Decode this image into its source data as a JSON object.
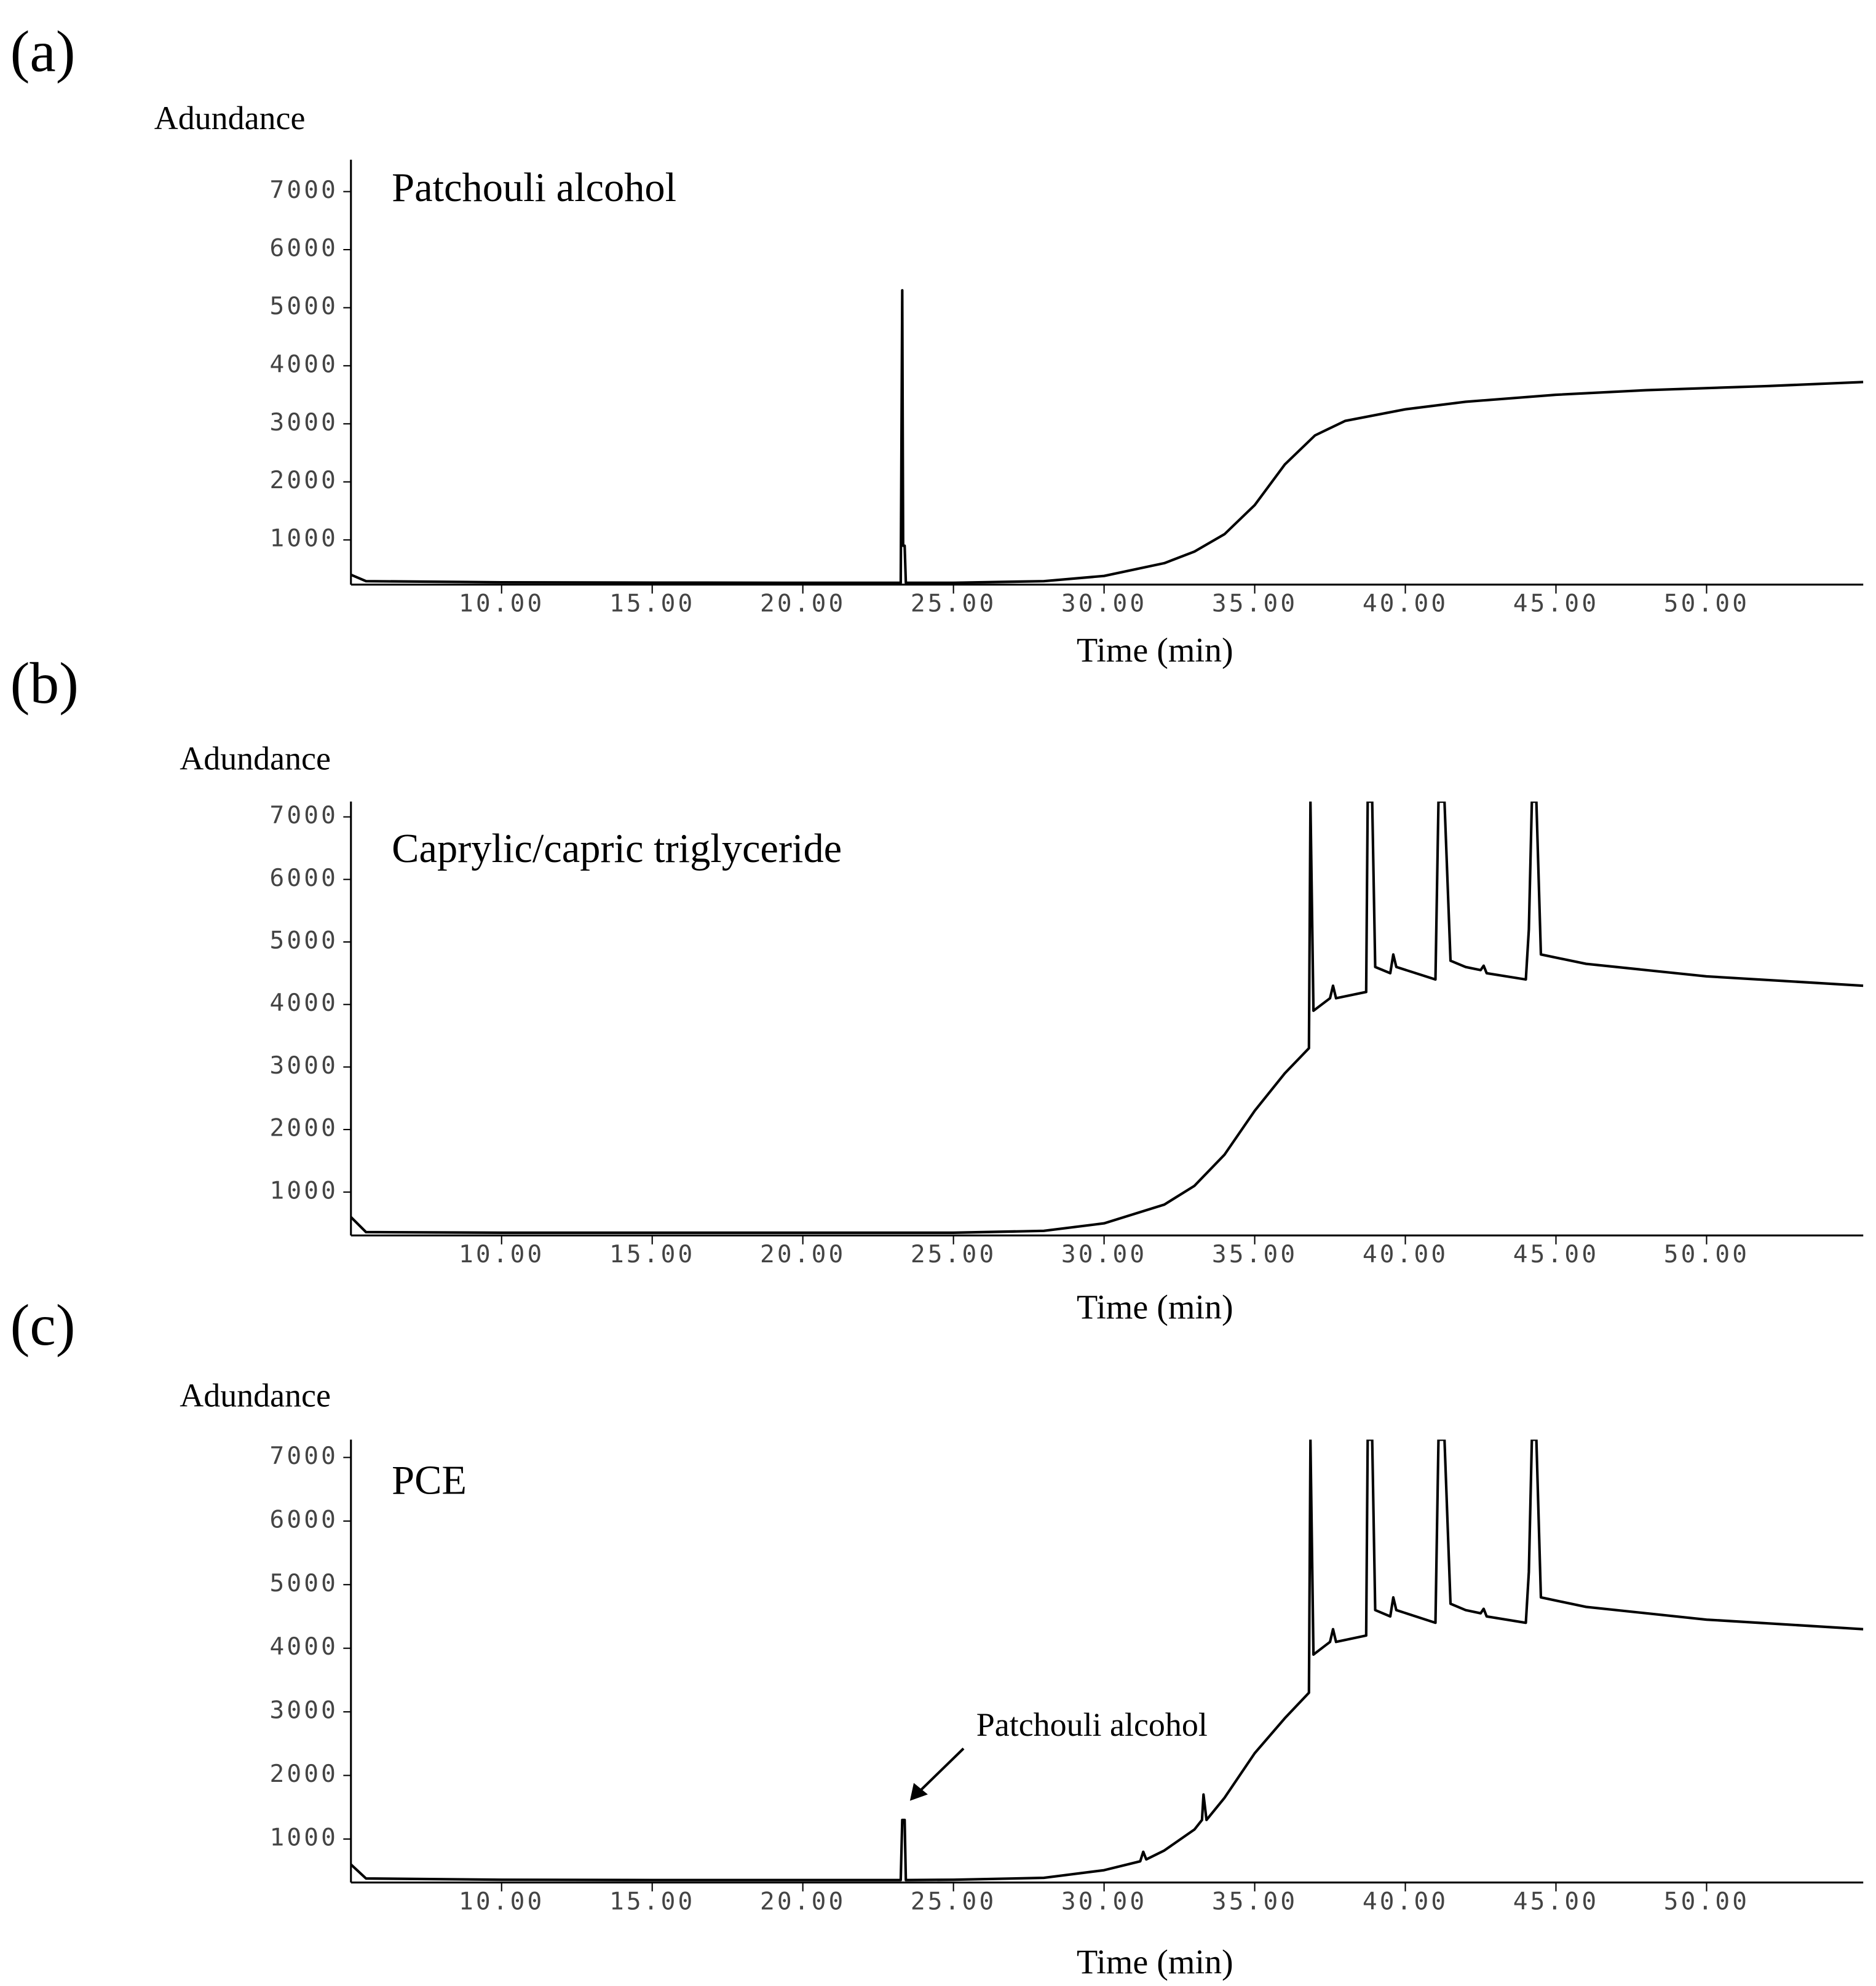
{
  "chart_data": [
    {
      "type": "line",
      "panel": "(a)",
      "title": "Patchouli alcohol",
      "ylabel": "Adundance",
      "xlabel": "Time (min)",
      "xlim": [
        5,
        55.2
      ],
      "ylim": [
        230,
        7550
      ],
      "xticks": [
        {
          "value": 10,
          "label": "10.00"
        },
        {
          "value": 15,
          "label": "15.00"
        },
        {
          "value": 20,
          "label": "20.00"
        },
        {
          "value": 25,
          "label": "25.00"
        },
        {
          "value": 30,
          "label": "30.00"
        },
        {
          "value": 35,
          "label": "35.00"
        },
        {
          "value": 40,
          "label": "40.00"
        },
        {
          "value": 45,
          "label": "45.00"
        },
        {
          "value": 50,
          "label": "50.00"
        }
      ],
      "yticks": [
        1000,
        2000,
        3000,
        4000,
        5000,
        6000,
        7000
      ],
      "color": "#000000",
      "x": [
        5,
        5.5,
        10,
        15,
        20,
        23.25,
        23.3,
        23.33,
        23.38,
        23.42,
        25,
        28,
        30,
        32,
        33,
        34,
        35,
        36,
        37,
        38,
        40,
        42,
        45,
        48,
        52,
        55.2
      ],
      "values": [
        400,
        290,
        270,
        265,
        262,
        262,
        5300,
        900,
        900,
        262,
        262,
        290,
        380,
        600,
        800,
        1100,
        1600,
        2300,
        2800,
        3050,
        3250,
        3380,
        3500,
        3580,
        3650,
        3720
      ]
    },
    {
      "type": "line",
      "panel": "(b)",
      "title": "Caprylic/capric triglyceride",
      "ylabel": "Adundance",
      "xlabel": "Time (min)",
      "xlim": [
        5,
        55.2
      ],
      "ylim": [
        306,
        7245
      ],
      "xticks": [
        {
          "value": 10,
          "label": "10.00"
        },
        {
          "value": 15,
          "label": "15.00"
        },
        {
          "value": 20,
          "label": "20.00"
        },
        {
          "value": 25,
          "label": "25.00"
        },
        {
          "value": 30,
          "label": "30.00"
        },
        {
          "value": 35,
          "label": "35.00"
        },
        {
          "value": 40,
          "label": "40.00"
        },
        {
          "value": 45,
          "label": "45.00"
        },
        {
          "value": 50,
          "label": "50.00"
        }
      ],
      "yticks": [
        1000,
        2000,
        3000,
        4000,
        5000,
        6000,
        7000
      ],
      "color": "#000000",
      "x": [
        5,
        5.5,
        10,
        15,
        20,
        25,
        28,
        30,
        32,
        33,
        33.3,
        34,
        35,
        36,
        36.8,
        36.85,
        36.95,
        37.5,
        37.6,
        37.7,
        38.7,
        38.75,
        38.9,
        39.0,
        39.5,
        39.6,
        39.7,
        41,
        41.1,
        41.3,
        41.5,
        42,
        42.5,
        42.6,
        42.7,
        44,
        44.1,
        44.2,
        44.35,
        44.5,
        46,
        50,
        55.2
      ],
      "values": [
        600,
        360,
        350,
        350,
        350,
        350,
        380,
        500,
        800,
        1100,
        1250,
        1600,
        2300,
        2900,
        3300,
        7245,
        3900,
        4100,
        4300,
        4100,
        4200,
        7245,
        7245,
        4600,
        4500,
        4800,
        4600,
        4400,
        7245,
        7245,
        4700,
        4600,
        4550,
        4620,
        4500,
        4400,
        5200,
        7245,
        7245,
        4800,
        4650,
        4450,
        4300
      ]
    },
    {
      "type": "line",
      "panel": "(c)",
      "title": "PCE",
      "ylabel": "Adundance",
      "xlabel": "Time (min)",
      "annotation": "Patchouli alcohol",
      "xlim": [
        5,
        55.2
      ],
      "ylim": [
        317,
        7280
      ],
      "xticks": [
        {
          "value": 10,
          "label": "10.00"
        },
        {
          "value": 15,
          "label": "15.00"
        },
        {
          "value": 20,
          "label": "20.00"
        },
        {
          "value": 25,
          "label": "25.00"
        },
        {
          "value": 30,
          "label": "30.00"
        },
        {
          "value": 35,
          "label": "35.00"
        },
        {
          "value": 40,
          "label": "40.00"
        },
        {
          "value": 45,
          "label": "45.00"
        },
        {
          "value": 50,
          "label": "50.00"
        }
      ],
      "yticks": [
        1000,
        2000,
        3000,
        4000,
        5000,
        6000,
        7000
      ],
      "color": "#000000",
      "x": [
        5,
        5.5,
        10,
        15,
        20,
        23.25,
        23.3,
        23.38,
        23.42,
        25,
        28,
        30,
        31.2,
        31.3,
        31.4,
        32,
        33,
        33.25,
        33.3,
        33.4,
        34,
        35,
        36,
        36.8,
        36.85,
        36.95,
        37.5,
        37.6,
        37.7,
        38.7,
        38.75,
        38.9,
        39.0,
        39.5,
        39.6,
        39.7,
        41,
        41.1,
        41.3,
        41.5,
        42,
        42.5,
        42.6,
        42.7,
        44,
        44.1,
        44.2,
        44.35,
        44.5,
        46,
        50,
        55.2
      ],
      "values": [
        600,
        380,
        360,
        355,
        355,
        355,
        1300,
        1300,
        355,
        360,
        390,
        510,
        650,
        800,
        680,
        820,
        1150,
        1300,
        1700,
        1300,
        1650,
        2350,
        2900,
        3300,
        7280,
        3900,
        4100,
        4300,
        4100,
        4200,
        7280,
        7280,
        4600,
        4500,
        4800,
        4600,
        4400,
        7280,
        7280,
        4700,
        4600,
        4550,
        4620,
        4500,
        4400,
        5200,
        7280,
        7280,
        4800,
        4650,
        4450,
        4300
      ]
    }
  ]
}
